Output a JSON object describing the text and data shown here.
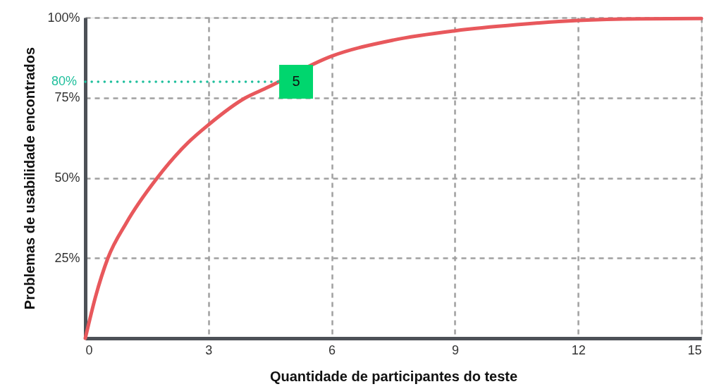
{
  "chart_data": {
    "type": "line",
    "xlabel": "Quantidade de participantes do teste",
    "ylabel": "Problemas de usabilidade encontrados",
    "x": [
      0,
      0.25,
      0.55,
      1,
      1.75,
      2.5,
      3,
      3.9,
      4.4,
      6,
      7.5,
      9,
      10.5,
      12,
      13.5,
      15
    ],
    "series": [
      {
        "color": "#e8585c",
        "values": [
          0,
          13,
          25,
          36,
          50,
          61,
          66.6,
          75,
          78,
          88,
          93,
          95.9,
          97.8,
          99.1,
          99.6,
          99.7
        ]
      }
    ],
    "xlim": [
      0,
      15
    ],
    "xticks": [
      0,
      3,
      6,
      9,
      12,
      15
    ],
    "ylim": [
      0,
      100
    ],
    "yticks": [
      {
        "value": 25,
        "label": "25%"
      },
      {
        "value": 50,
        "label": "50%"
      },
      {
        "value": 75,
        "label": "75%"
      },
      {
        "value": 100,
        "label": "100%"
      }
    ],
    "grid": true,
    "marker": "none",
    "line_style": "solid",
    "ref_lines": [
      {
        "axis": "y",
        "value": 80,
        "label": "80%",
        "color": "#1fbf9c",
        "line_style": "dotted"
      }
    ],
    "annotations": [
      "5"
    ]
  }
}
